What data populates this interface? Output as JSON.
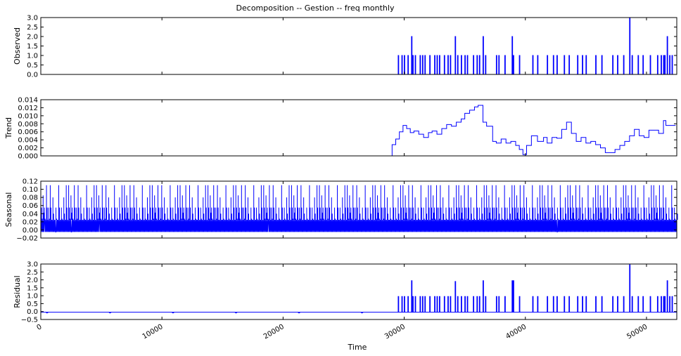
{
  "chart_data": [
    {
      "type": "line",
      "panel": "observed",
      "title": "Decomposition -- Gestion -- freq monthly",
      "ylabel": "Observed",
      "xlim": [
        0,
        52500
      ],
      "ylim": [
        0.0,
        3.0
      ],
      "yticks": [
        0.0,
        0.5,
        1.0,
        1.5,
        2.0,
        2.5,
        3.0
      ],
      "ytick_labels": [
        "0.0",
        "0.5",
        "1.0",
        "1.5",
        "2.0",
        "2.5",
        "3.0"
      ],
      "color": "#0000ff",
      "grid": false,
      "baseline": 0,
      "spikes": [
        [
          29500,
          1
        ],
        [
          29800,
          1
        ],
        [
          30000,
          1
        ],
        [
          30300,
          1
        ],
        [
          30600,
          2
        ],
        [
          30700,
          1
        ],
        [
          30900,
          1
        ],
        [
          31300,
          1
        ],
        [
          31500,
          1
        ],
        [
          31700,
          1
        ],
        [
          32100,
          1
        ],
        [
          32500,
          1
        ],
        [
          32700,
          1
        ],
        [
          32900,
          1
        ],
        [
          33300,
          1
        ],
        [
          33600,
          1
        ],
        [
          33800,
          1
        ],
        [
          34200,
          2
        ],
        [
          34400,
          1
        ],
        [
          34700,
          1
        ],
        [
          35000,
          1
        ],
        [
          35200,
          1
        ],
        [
          35700,
          1
        ],
        [
          36000,
          1
        ],
        [
          36200,
          1
        ],
        [
          36500,
          2
        ],
        [
          36700,
          1
        ],
        [
          37600,
          1
        ],
        [
          37800,
          1
        ],
        [
          38300,
          1
        ],
        [
          38900,
          2
        ],
        [
          39000,
          1
        ],
        [
          39500,
          1
        ],
        [
          40600,
          1
        ],
        [
          41000,
          1
        ],
        [
          41800,
          1
        ],
        [
          42300,
          1
        ],
        [
          42600,
          1
        ],
        [
          43200,
          1
        ],
        [
          43600,
          1
        ],
        [
          44300,
          1
        ],
        [
          44700,
          1
        ],
        [
          45000,
          1
        ],
        [
          45800,
          1
        ],
        [
          46300,
          1
        ],
        [
          47200,
          1
        ],
        [
          47600,
          1
        ],
        [
          48100,
          1
        ],
        [
          48600,
          3
        ],
        [
          48800,
          1
        ],
        [
          49300,
          1
        ],
        [
          49700,
          1
        ],
        [
          50300,
          1
        ],
        [
          50900,
          1
        ],
        [
          51200,
          1
        ],
        [
          51400,
          1
        ],
        [
          51500,
          1
        ],
        [
          51700,
          2
        ],
        [
          51900,
          1
        ],
        [
          52100,
          1
        ]
      ]
    },
    {
      "type": "line",
      "panel": "trend",
      "ylabel": "Trend",
      "xlim": [
        0,
        52500
      ],
      "ylim": [
        0.0,
        0.014
      ],
      "yticks": [
        0.0,
        0.002,
        0.004,
        0.006,
        0.008,
        0.01,
        0.012,
        0.014
      ],
      "ytick_labels": [
        "0.000",
        "0.002",
        "0.004",
        "0.006",
        "0.008",
        "0.010",
        "0.012",
        "0.014"
      ],
      "color": "#0000ff",
      "grid": false,
      "x": [
        0,
        28700,
        29000,
        29300,
        29600,
        29900,
        30200,
        30500,
        30800,
        31200,
        31600,
        32000,
        32300,
        32700,
        33100,
        33500,
        33900,
        34300,
        34700,
        35000,
        35400,
        35800,
        36100,
        36500,
        36800,
        37300,
        37600,
        38000,
        38400,
        38800,
        39200,
        39500,
        39800,
        40100,
        40500,
        41000,
        41500,
        41800,
        42200,
        42600,
        43000,
        43400,
        43800,
        44200,
        44600,
        45000,
        45400,
        45800,
        46200,
        46600,
        47000,
        47400,
        47800,
        48200,
        48600,
        49000,
        49400,
        49800,
        50200,
        50600,
        51000,
        51400,
        51600,
        52400
      ],
      "y": [
        0.0,
        0.0,
        0.0028,
        0.0042,
        0.006,
        0.0076,
        0.0068,
        0.0058,
        0.0062,
        0.0054,
        0.0046,
        0.0058,
        0.0062,
        0.0054,
        0.0068,
        0.0078,
        0.0074,
        0.0084,
        0.0092,
        0.0106,
        0.0114,
        0.0122,
        0.0126,
        0.0084,
        0.0074,
        0.0036,
        0.0032,
        0.0042,
        0.0032,
        0.0036,
        0.0026,
        0.0016,
        0.0003,
        0.0026,
        0.005,
        0.0036,
        0.0046,
        0.0032,
        0.0046,
        0.0044,
        0.0066,
        0.0084,
        0.0056,
        0.0036,
        0.0046,
        0.0032,
        0.0036,
        0.0028,
        0.002,
        0.0008,
        0.0008,
        0.0016,
        0.0026,
        0.0036,
        0.005,
        0.0066,
        0.005,
        0.0046,
        0.0064,
        0.0064,
        0.0056,
        0.0088,
        0.0076,
        0.0076
      ]
    },
    {
      "type": "line",
      "panel": "seasonal",
      "ylabel": "Seasonal",
      "xlim": [
        0,
        52500
      ],
      "ylim": [
        -0.02,
        0.12
      ],
      "yticks": [
        -0.02,
        0.0,
        0.02,
        0.04,
        0.06,
        0.08,
        0.1,
        0.12
      ],
      "ytick_labels": [
        "−0.02",
        "0.00",
        "0.02",
        "0.04",
        "0.06",
        "0.08",
        "0.10",
        "0.12"
      ],
      "color": "#0000ff",
      "grid": false,
      "pattern": "dense periodic signal (period about 2300) oscillating between about -0.005 and 0.055, with spikes up to 0.11",
      "band_min": -0.005,
      "band_max": 0.025,
      "period": 2300,
      "cycle_offsets": [
        0,
        60,
        190,
        300,
        470,
        650,
        780,
        1000,
        1250,
        1480,
        1700,
        1900,
        2100
      ],
      "cycle_values": [
        0.11,
        0.055,
        0.085,
        0.055,
        0.11,
        0.055,
        0.11,
        0.08,
        0.055,
        0.11,
        0.055,
        0.08,
        0.11
      ]
    },
    {
      "type": "line",
      "panel": "residual",
      "ylabel": "Residual",
      "xlabel": "Time",
      "xlim": [
        0,
        52500
      ],
      "ylim": [
        -0.5,
        3.0
      ],
      "yticks": [
        -0.5,
        0.0,
        0.5,
        1.0,
        1.5,
        2.0,
        2.5,
        3.0
      ],
      "ytick_labels": [
        "−0.5",
        "0.0",
        "0.5",
        "1.0",
        "1.5",
        "2.0",
        "2.5",
        "3.0"
      ],
      "xticks": [
        0,
        10000,
        20000,
        30000,
        40000,
        50000
      ],
      "xtick_labels": [
        "0",
        "10000",
        "20000",
        "30000",
        "40000",
        "50000"
      ],
      "color": "#0000ff",
      "grid": false,
      "baseline": -0.04,
      "spikes": [
        [
          29500,
          0.95
        ],
        [
          29800,
          0.95
        ],
        [
          30000,
          0.95
        ],
        [
          30300,
          0.95
        ],
        [
          30600,
          1.95
        ],
        [
          30700,
          0.95
        ],
        [
          30900,
          0.95
        ],
        [
          31300,
          0.95
        ],
        [
          31500,
          0.95
        ],
        [
          31700,
          0.95
        ],
        [
          32100,
          0.95
        ],
        [
          32500,
          0.95
        ],
        [
          32700,
          0.95
        ],
        [
          32900,
          0.95
        ],
        [
          33300,
          0.95
        ],
        [
          33600,
          0.95
        ],
        [
          33800,
          0.95
        ],
        [
          34200,
          1.9
        ],
        [
          34400,
          0.95
        ],
        [
          34700,
          0.95
        ],
        [
          35000,
          0.95
        ],
        [
          35200,
          0.95
        ],
        [
          35700,
          0.95
        ],
        [
          36000,
          0.95
        ],
        [
          36200,
          0.95
        ],
        [
          36500,
          1.95
        ],
        [
          36700,
          0.95
        ],
        [
          37600,
          0.95
        ],
        [
          37800,
          0.95
        ],
        [
          38300,
          0.95
        ],
        [
          38900,
          1.95
        ],
        [
          39000,
          1.95
        ],
        [
          39500,
          0.95
        ],
        [
          40600,
          0.95
        ],
        [
          41000,
          0.95
        ],
        [
          41800,
          0.95
        ],
        [
          42300,
          0.95
        ],
        [
          42600,
          0.95
        ],
        [
          43200,
          0.95
        ],
        [
          43600,
          0.95
        ],
        [
          44300,
          0.95
        ],
        [
          44700,
          0.95
        ],
        [
          45000,
          0.95
        ],
        [
          45800,
          0.95
        ],
        [
          46300,
          0.95
        ],
        [
          47200,
          0.95
        ],
        [
          47600,
          0.95
        ],
        [
          48100,
          0.95
        ],
        [
          48600,
          2.95
        ],
        [
          48800,
          0.95
        ],
        [
          49300,
          0.95
        ],
        [
          49700,
          0.95
        ],
        [
          50300,
          0.95
        ],
        [
          50900,
          0.95
        ],
        [
          51200,
          0.95
        ],
        [
          51400,
          0.95
        ],
        [
          51500,
          0.95
        ],
        [
          51700,
          1.95
        ],
        [
          51900,
          0.95
        ],
        [
          52100,
          0.95
        ]
      ]
    }
  ]
}
